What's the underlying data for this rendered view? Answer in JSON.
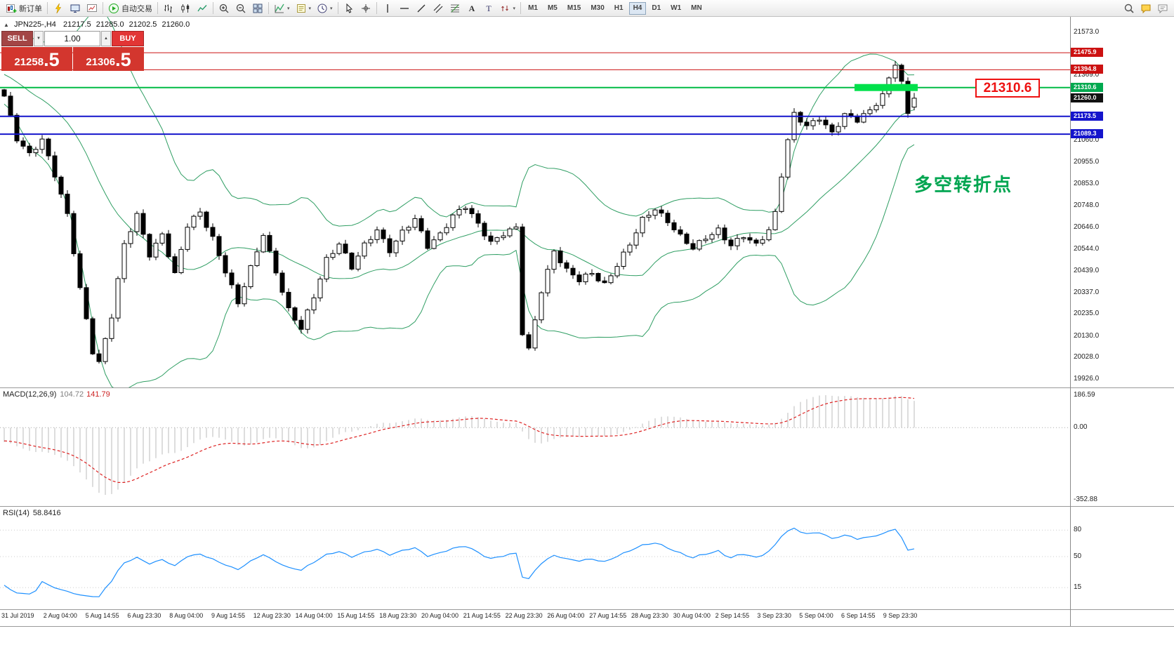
{
  "toolbar": {
    "groups": [
      {
        "name": "orders",
        "items": [
          {
            "icon": "new-order-icon",
            "label": "新订单",
            "name": "new-order-button"
          }
        ]
      },
      {
        "name": "panels",
        "items": [
          {
            "icon": "lightning-icon",
            "name": "quick-trade-button"
          },
          {
            "icon": "monitor-icon",
            "name": "market-watch-button"
          },
          {
            "icon": "chart-add-icon",
            "name": "new-chart-button"
          }
        ]
      },
      {
        "name": "auto",
        "items": [
          {
            "icon": "autotrading-icon",
            "label": "自动交易",
            "name": "autotrading-button"
          }
        ]
      },
      {
        "name": "chart-type",
        "items": [
          {
            "icon": "bar-chart-icon",
            "name": "bar-chart-button"
          },
          {
            "icon": "candlestick-icon",
            "name": "candlestick-chart-button"
          },
          {
            "icon": "line-chart-icon",
            "name": "line-chart-button"
          }
        ]
      },
      {
        "name": "zoom",
        "items": [
          {
            "icon": "zoom-in-icon",
            "name": "zoom-in-button"
          },
          {
            "icon": "zoom-out-icon",
            "name": "zoom-out-button"
          },
          {
            "icon": "tile-windows-icon",
            "name": "tile-windows-button"
          }
        ]
      },
      {
        "name": "view",
        "items": [
          {
            "icon": "indicators-icon",
            "name": "indicators-button",
            "dropdown": true
          },
          {
            "icon": "templates-icon",
            "name": "templates-button",
            "dropdown": true
          },
          {
            "icon": "period-icon",
            "name": "periods-button",
            "dropdown": true
          }
        ]
      },
      {
        "name": "pointer",
        "items": [
          {
            "icon": "cursor-icon",
            "name": "cursor-button"
          },
          {
            "icon": "crosshair-icon",
            "name": "crosshair-button"
          }
        ]
      },
      {
        "name": "draw",
        "items": [
          {
            "icon": "vertical-line-icon",
            "name": "vertical-line-button"
          },
          {
            "icon": "horizontal-line-icon",
            "name": "horizontal-line-button"
          },
          {
            "icon": "trendline-icon",
            "name": "trendline-button"
          },
          {
            "icon": "channel-icon",
            "name": "channel-button"
          },
          {
            "icon": "fibonacci-icon",
            "name": "fibonacci-button"
          },
          {
            "icon": "text-icon",
            "name": "text-button"
          },
          {
            "icon": "label-icon",
            "name": "label-button"
          },
          {
            "icon": "arrows-icon",
            "name": "arrows-button",
            "dropdown": true
          }
        ]
      }
    ],
    "timeframes": [
      "M1",
      "M5",
      "M15",
      "M30",
      "H1",
      "H4",
      "D1",
      "W1",
      "MN"
    ],
    "active_timeframe": "H4",
    "right_items": [
      {
        "icon": "search-icon",
        "name": "search-button"
      },
      {
        "icon": "chat-icon",
        "name": "chat-button"
      },
      {
        "icon": "chat2-icon",
        "name": "community-button"
      }
    ]
  },
  "symbol_header": {
    "collapse_icon": "▲",
    "symbol": "JPN225-,H4",
    "open": "21217.5",
    "high": "21285.0",
    "low": "21202.5",
    "close": "21260.0"
  },
  "trade_panel": {
    "sell_label": "SELL",
    "buy_label": "BUY",
    "volume": "1.00",
    "spinner_down": "▼",
    "spinner_up": "▲",
    "sell_price_small": "21258",
    "sell_price_big": ".5",
    "buy_price_small": "21306",
    "buy_price_big": ".5"
  },
  "price_axis": {
    "ticks": [
      {
        "label": "21573.0",
        "price": 21573.0
      },
      {
        "label": "21369.0",
        "price": 21369.0
      },
      {
        "label": "21060.0",
        "price": 21060.0
      },
      {
        "label": "20955.0",
        "price": 20955.0
      },
      {
        "label": "20853.0",
        "price": 20853.0
      },
      {
        "label": "20748.0",
        "price": 20748.0
      },
      {
        "label": "20646.0",
        "price": 20646.0
      },
      {
        "label": "20544.0",
        "price": 20544.0
      },
      {
        "label": "20439.0",
        "price": 20439.0
      },
      {
        "label": "20337.0",
        "price": 20337.0
      },
      {
        "label": "20235.0",
        "price": 20235.0
      },
      {
        "label": "20130.0",
        "price": 20130.0
      },
      {
        "label": "20028.0",
        "price": 20028.0
      },
      {
        "label": "19926.0",
        "price": 19926.0
      }
    ],
    "badges": [
      {
        "label": "21475.9",
        "price": 21475.9,
        "color": "#cc1111"
      },
      {
        "label": "21394.8",
        "price": 21394.8,
        "color": "#cc1111"
      },
      {
        "label": "21310.6",
        "price": 21310.6,
        "color": "#00a94f"
      },
      {
        "label": "21260.0",
        "price": 21260.0,
        "color": "#111111"
      },
      {
        "label": "21173.5",
        "price": 21173.5,
        "color": "#1414cc"
      },
      {
        "label": "21089.3",
        "price": 21089.3,
        "color": "#1414cc"
      }
    ],
    "lines": [
      {
        "price": 21475.9,
        "color": "#cc1111",
        "width": 1
      },
      {
        "price": 21394.8,
        "color": "#cc1111",
        "width": 1
      },
      {
        "price": 21310.6,
        "color": "#00bb44",
        "width": 2
      },
      {
        "price": 21173.5,
        "color": "#1414cc",
        "width": 2
      },
      {
        "price": 21089.3,
        "color": "#1414cc",
        "width": 2
      }
    ]
  },
  "macd": {
    "label": "MACD(12,26,9)",
    "value_main": "104.72",
    "value_signal": "141.79",
    "axis_top": "186.59",
    "axis_zero": "0.00",
    "axis_bottom": "-352.88"
  },
  "rsi": {
    "label": "RSI(14)",
    "value": "58.8416",
    "levels": [
      "80",
      "50",
      "15"
    ]
  },
  "time_axis": {
    "labels": [
      "31 Jul 2019",
      "2 Aug 04:00",
      "5 Aug 14:55",
      "6 Aug 23:30",
      "8 Aug 04:00",
      "9 Aug 14:55",
      "12 Aug 23:30",
      "14 Aug 04:00",
      "15 Aug 14:55",
      "18 Aug 23:30",
      "20 Aug 04:00",
      "21 Aug 14:55",
      "22 Aug 23:30",
      "26 Aug 04:00",
      "27 Aug 14:55",
      "28 Aug 23:30",
      "30 Aug 04:00",
      "2 Sep 14:55",
      "3 Sep 23:30",
      "5 Sep 04:00",
      "6 Sep 14:55",
      "9 Sep 23:30"
    ]
  },
  "annotations": {
    "price_label": "21310.6",
    "note": "多空转折点",
    "note_color": "#00a550",
    "highlight_box": {
      "from_candle": 135,
      "to_candle": 144,
      "price": 21310.6,
      "color": "#00e14b"
    }
  },
  "chart_data": {
    "type": "candlestick",
    "symbol": "JPN225-",
    "timeframe": "H4",
    "title": "JPN225-,H4",
    "ohlc_current": {
      "open": 21217.5,
      "high": 21285.0,
      "low": 21202.5,
      "close": 21260.0
    },
    "y_axis_range": [
      19926.0,
      21573.0
    ],
    "y_tick_labels": [
      21573.0,
      21369.0,
      21060.0,
      20955.0,
      20853.0,
      20748.0,
      20646.0,
      20544.0,
      20439.0,
      20337.0,
      20235.0,
      20130.0,
      20028.0,
      19926.0
    ],
    "num_candles": 145,
    "close_path_anchors": [
      [
        0,
        21270
      ],
      [
        2,
        21060
      ],
      [
        4,
        20990
      ],
      [
        6,
        21070
      ],
      [
        8,
        20900
      ],
      [
        10,
        20700
      ],
      [
        12,
        20350
      ],
      [
        14,
        20060
      ],
      [
        15,
        20010
      ],
      [
        17,
        20230
      ],
      [
        19,
        20560
      ],
      [
        21,
        20700
      ],
      [
        23,
        20520
      ],
      [
        25,
        20620
      ],
      [
        27,
        20420
      ],
      [
        29,
        20650
      ],
      [
        31,
        20720
      ],
      [
        33,
        20600
      ],
      [
        35,
        20440
      ],
      [
        37,
        20280
      ],
      [
        39,
        20450
      ],
      [
        41,
        20620
      ],
      [
        43,
        20440
      ],
      [
        45,
        20250
      ],
      [
        47,
        20160
      ],
      [
        49,
        20320
      ],
      [
        51,
        20500
      ],
      [
        53,
        20570
      ],
      [
        55,
        20450
      ],
      [
        57,
        20560
      ],
      [
        59,
        20640
      ],
      [
        61,
        20540
      ],
      [
        63,
        20620
      ],
      [
        65,
        20680
      ],
      [
        67,
        20560
      ],
      [
        69,
        20620
      ],
      [
        71,
        20700
      ],
      [
        73,
        20740
      ],
      [
        75,
        20660
      ],
      [
        77,
        20580
      ],
      [
        79,
        20620
      ],
      [
        81,
        20640
      ],
      [
        82,
        20140
      ],
      [
        83,
        20060
      ],
      [
        85,
        20350
      ],
      [
        87,
        20540
      ],
      [
        89,
        20440
      ],
      [
        91,
        20390
      ],
      [
        93,
        20430
      ],
      [
        95,
        20380
      ],
      [
        97,
        20470
      ],
      [
        99,
        20560
      ],
      [
        101,
        20680
      ],
      [
        103,
        20740
      ],
      [
        105,
        20680
      ],
      [
        107,
        20600
      ],
      [
        109,
        20540
      ],
      [
        111,
        20600
      ],
      [
        113,
        20640
      ],
      [
        115,
        20560
      ],
      [
        117,
        20600
      ],
      [
        119,
        20560
      ],
      [
        121,
        20640
      ],
      [
        122,
        20720
      ],
      [
        123,
        20900
      ],
      [
        124,
        21060
      ],
      [
        125,
        21180
      ],
      [
        127,
        21120
      ],
      [
        129,
        21170
      ],
      [
        131,
        21100
      ],
      [
        133,
        21180
      ],
      [
        135,
        21150
      ],
      [
        137,
        21200
      ],
      [
        139,
        21280
      ],
      [
        140,
        21360
      ],
      [
        141,
        21430
      ],
      [
        142,
        21330
      ],
      [
        143,
        21180
      ],
      [
        144,
        21260
      ]
    ],
    "overlays": {
      "bollinger_bands": {
        "period": 20,
        "deviation": 2,
        "color": "#2f9e63"
      }
    },
    "horizontal_levels": [
      21475.9,
      21394.8,
      21310.6,
      21173.5,
      21089.3
    ],
    "indicators": [
      {
        "type": "MACD",
        "params": [
          12,
          26,
          9
        ],
        "current_values": [
          104.72,
          141.79
        ],
        "axis_labels": [
          186.59,
          0,
          -352.88
        ]
      },
      {
        "type": "RSI",
        "params": [
          14
        ],
        "current_value": 58.8416,
        "levels": [
          80,
          50,
          15
        ]
      }
    ]
  }
}
